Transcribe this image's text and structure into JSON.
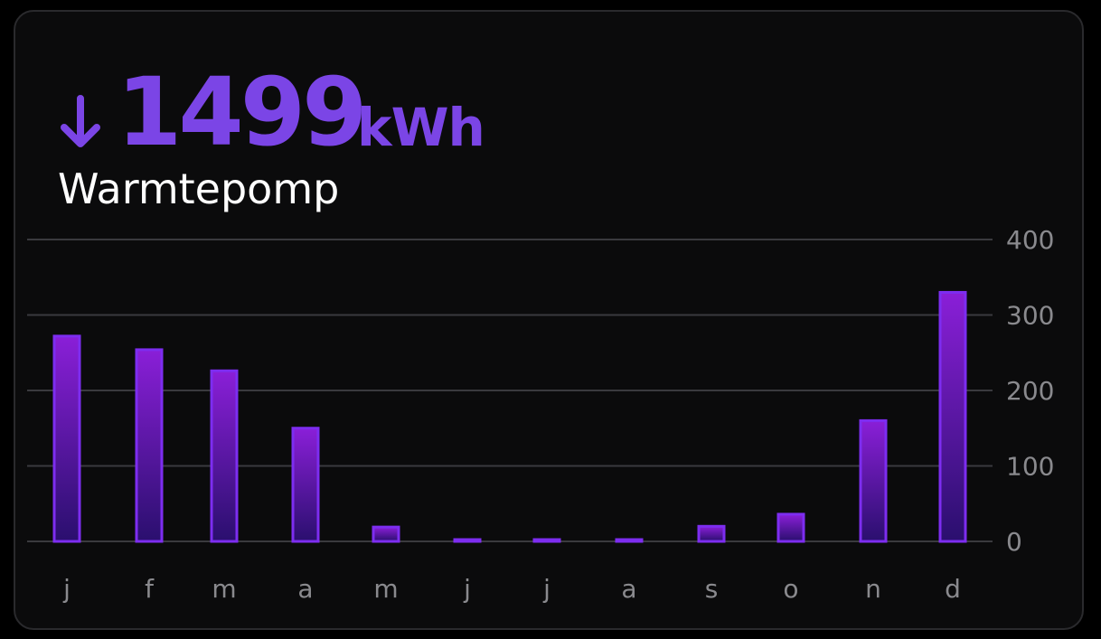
{
  "card": {
    "value": "1499",
    "unit": "kWh",
    "title": "Warmtepomp",
    "trend_icon": "arrow-down-icon"
  },
  "colors": {
    "accent": "#7b45e6",
    "bar_top": "#8a1fd8",
    "bar_bottom": "#2a0f6e",
    "bar_stroke": "#7d2df0",
    "grid": "#3a3a3e",
    "tick_text": "#8a8a8e",
    "background": "#0b0b0c"
  },
  "chart_data": {
    "type": "bar",
    "categories": [
      "j",
      "f",
      "m",
      "a",
      "m",
      "j",
      "j",
      "a",
      "s",
      "o",
      "n",
      "d"
    ],
    "values": [
      272,
      254,
      226,
      150,
      19,
      2,
      2,
      2,
      20,
      36,
      160,
      330
    ],
    "ylim": [
      0,
      400
    ],
    "yticks": [
      0,
      100,
      200,
      300,
      400
    ],
    "grid": true,
    "y_axis_position": "right"
  }
}
